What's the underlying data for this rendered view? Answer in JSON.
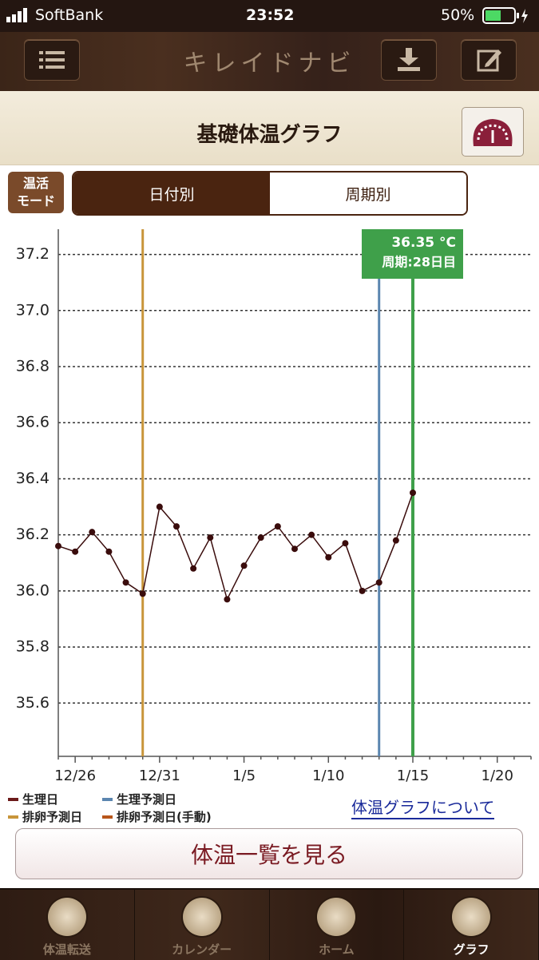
{
  "status_bar": {
    "carrier": "SoftBank",
    "time": "23:52",
    "battery": "50%"
  },
  "nav": {
    "title": "キレイドナビ"
  },
  "header": {
    "title": "基礎体温グラフ"
  },
  "mode": {
    "badge": [
      "温活",
      "モード"
    ],
    "tabs": [
      "日付別",
      "周期別"
    ],
    "selected": 0
  },
  "chart_data": {
    "type": "line",
    "categories": [
      null,
      "12/26",
      null,
      null,
      null,
      null,
      "12/31",
      null,
      null,
      null,
      null,
      "1/5",
      null,
      null,
      null,
      null,
      "1/10",
      null,
      null,
      null,
      null,
      "1/15",
      null,
      null,
      null,
      null,
      "1/20",
      null,
      null
    ],
    "values": [
      36.16,
      36.14,
      36.21,
      36.14,
      36.03,
      35.99,
      36.3,
      36.23,
      36.08,
      36.19,
      35.97,
      36.09,
      36.19,
      36.23,
      36.15,
      36.2,
      36.12,
      36.17,
      36.0,
      36.03,
      36.18,
      36.35,
      null,
      null,
      null,
      null,
      null,
      null,
      null
    ],
    "color": "#3a0c0c",
    "ylim": [
      35.41,
      37.29
    ],
    "yticks": [
      {
        "value": 35.6,
        "label": "35.6"
      },
      {
        "value": 35.8,
        "label": "35.8"
      },
      {
        "value": 36,
        "label": "36.0"
      },
      {
        "value": 36.2,
        "label": "36.2"
      },
      {
        "value": 36.4,
        "label": "36.4"
      },
      {
        "value": 36.6,
        "label": "36.6"
      },
      {
        "value": 36.8,
        "label": "36.8"
      },
      {
        "value": 37,
        "label": "37.0"
      },
      {
        "value": 37.2,
        "label": "37.2"
      }
    ],
    "grid": true,
    "legend": [
      {
        "name": "生理日",
        "color": "#6b1a1a"
      },
      {
        "name": "生理予測日",
        "color": "#5b86b0"
      },
      {
        "name": "排卵予測日",
        "color": "#c8953a"
      },
      {
        "name": "排卵予測日(手動)",
        "color": "#b8561a"
      }
    ],
    "markers": [
      {
        "legend": 2,
        "category": 5
      },
      {
        "legend": 1,
        "category": 19
      }
    ],
    "selected": {
      "category": 21,
      "color": "#3fa04a",
      "temp": "36.35 °C",
      "cycle": "周期:28日目"
    }
  },
  "link": "体温グラフについて",
  "button": "体温一覧を見る",
  "tab_bar": {
    "items": [
      "体温転送",
      "カレンダー",
      "ホーム",
      "グラフ"
    ],
    "selected": 3
  }
}
